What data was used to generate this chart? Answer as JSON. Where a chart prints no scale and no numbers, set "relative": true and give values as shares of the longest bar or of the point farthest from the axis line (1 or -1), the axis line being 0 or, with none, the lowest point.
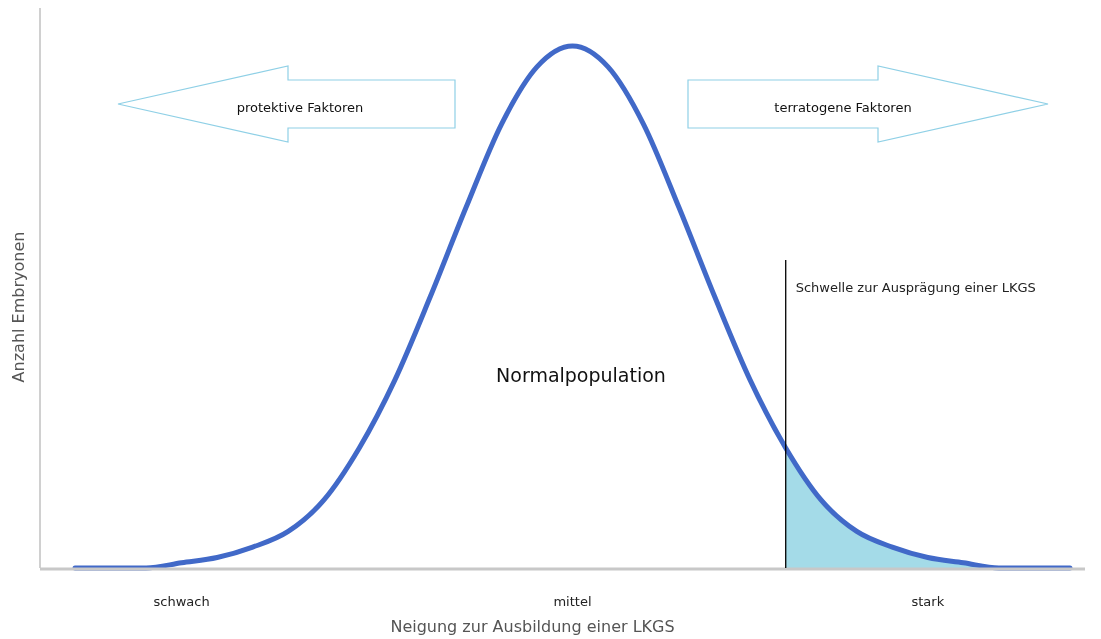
{
  "chart_data": {
    "type": "line",
    "relative": true,
    "xlabel": "Neigung zur Ausbildung einer LKGS",
    "ylabel": "Anzahl Embryonen",
    "categories": [
      null,
      null,
      null,
      "schwach",
      null,
      null,
      null,
      null,
      null,
      null,
      null,
      null,
      null,
      null,
      "mittel",
      null,
      null,
      null,
      null,
      null,
      null,
      null,
      null,
      null,
      "stark",
      null,
      null,
      null,
      null
    ],
    "series": [
      {
        "type": "area",
        "color": "#a4dbe8",
        "values": [
          null,
          null,
          null,
          null,
          null,
          null,
          null,
          null,
          null,
          null,
          null,
          null,
          null,
          null,
          null,
          null,
          null,
          null,
          null,
          null,
          0.23,
          0.13,
          0.07,
          0.04,
          0.02,
          0.01,
          0,
          0,
          0
        ]
      },
      {
        "color": "#4169c8",
        "values": [
          0,
          0,
          0,
          0.01,
          0.02,
          0.04,
          0.07,
          0.13,
          0.23,
          0.36,
          0.52,
          0.69,
          0.85,
          0.96,
          1,
          0.96,
          0.85,
          0.69,
          0.52,
          0.36,
          0.23,
          0.13,
          0.07,
          0.04,
          0.02,
          0.01,
          0,
          0,
          0
        ]
      }
    ],
    "annotations": [
      "protektive Faktoren",
      "terratogene Faktoren",
      "Normalpopulation",
      "Schwelle zur Ausprägung einer LKGS"
    ]
  }
}
